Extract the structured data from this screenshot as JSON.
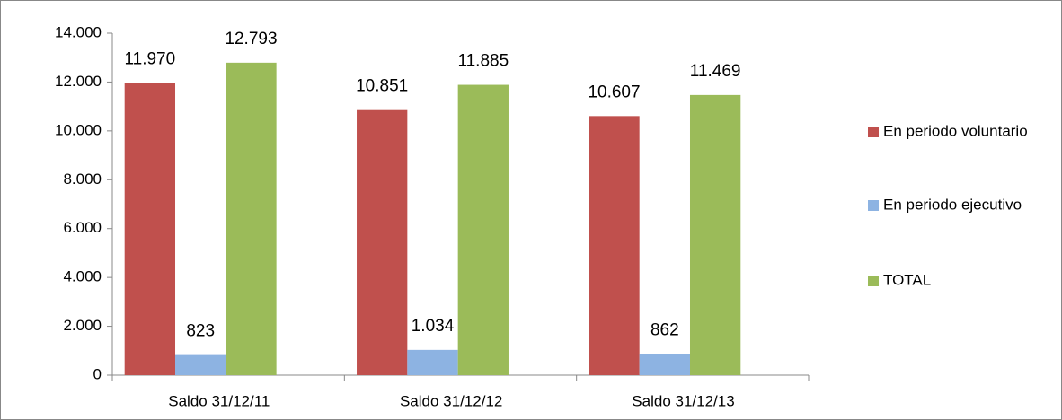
{
  "chart_data": {
    "type": "bar",
    "categories": [
      "Saldo 31/12/11",
      "Saldo 31/12/12",
      "Saldo 31/12/13"
    ],
    "series": [
      {
        "name": "En periodo voluntario",
        "color": "#c0504d",
        "values": [
          11970,
          10851,
          10607
        ],
        "value_labels": [
          "11.970",
          "10.851",
          "10.607"
        ]
      },
      {
        "name": "En periodo ejecutivo",
        "color": "#8db3e2",
        "values": [
          823,
          1034,
          862
        ],
        "value_labels": [
          "823",
          "1.034",
          "862"
        ]
      },
      {
        "name": "TOTAL",
        "color": "#9bbb59",
        "values": [
          12793,
          11885,
          11469
        ],
        "value_labels": [
          "12.793",
          "11.885",
          "11.469"
        ]
      }
    ],
    "ylim": [
      0,
      14000
    ],
    "yticks": [
      0,
      {
        "value": 2000,
        "label": "2.000"
      },
      {
        "value": 4000,
        "label": "4.000"
      },
      {
        "value": 6000,
        "label": "6.000"
      },
      {
        "value": 8000,
        "label": "8.000"
      },
      {
        "value": 10000,
        "label": "10.000"
      },
      {
        "value": 12000,
        "label": "12.000"
      },
      {
        "value": 14000,
        "label": "14.000"
      }
    ],
    "grid": false,
    "legend": "right"
  }
}
